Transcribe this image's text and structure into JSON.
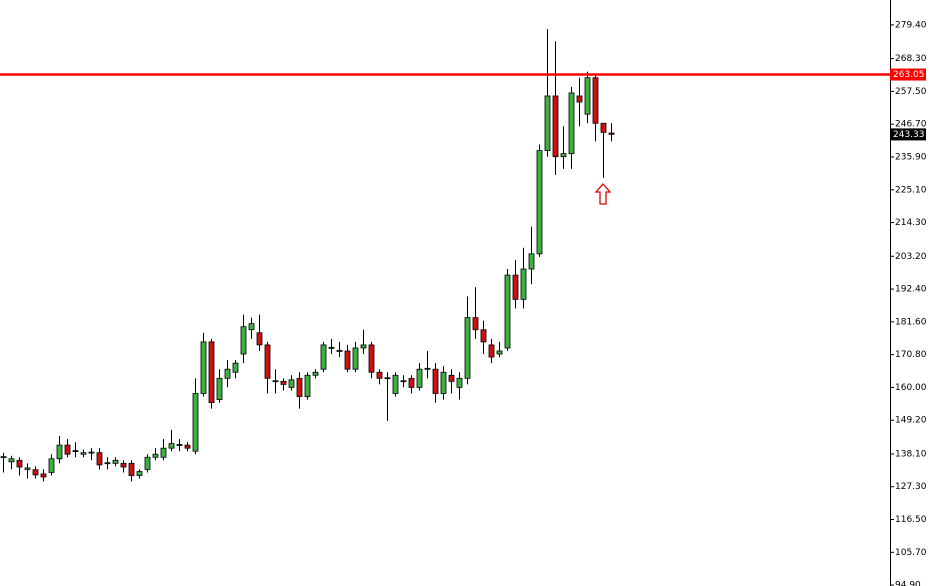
{
  "chart_data": {
    "type": "candlestick",
    "open": [
      137,
      135.5,
      136,
      133,
      132.9,
      131.5,
      132,
      136.5,
      141,
      139,
      138,
      138.5,
      138.5,
      135,
      135,
      135,
      135,
      131,
      133,
      137,
      137,
      140,
      141,
      141,
      139,
      158,
      175,
      156,
      163,
      165,
      171,
      179,
      178,
      174,
      162,
      162,
      160,
      163,
      157,
      164,
      166,
      173,
      172,
      172,
      166,
      173,
      174,
      165,
      163,
      158,
      162,
      163,
      160,
      166,
      166,
      158,
      164,
      160,
      163,
      183,
      179,
      174,
      171,
      173,
      197,
      189,
      199,
      204,
      238,
      256,
      236,
      237,
      256,
      250,
      262,
      247,
      243.8
    ],
    "high": [
      138.5,
      137.5,
      137,
      135,
      134,
      133,
      138,
      144,
      143,
      142,
      139.5,
      140,
      140,
      137,
      137,
      136,
      136,
      133,
      138,
      140,
      143,
      146,
      143,
      142,
      163,
      178,
      176,
      166,
      169,
      169,
      184,
      183,
      184,
      175,
      166,
      163,
      164,
      165,
      165,
      166,
      175,
      176,
      175,
      174,
      175,
      179,
      175,
      166,
      165,
      165,
      164,
      164,
      168,
      172,
      168,
      167,
      166,
      165,
      190,
      193,
      182,
      176,
      175,
      199,
      202,
      206,
      213,
      240,
      278,
      274,
      246,
      259,
      262,
      264,
      263,
      247,
      247
    ],
    "low": [
      132,
      133,
      131,
      130,
      130,
      129,
      131,
      135,
      137,
      137,
      137,
      136,
      133,
      133,
      134,
      132,
      129,
      130,
      132,
      136,
      136,
      139,
      139,
      139,
      138,
      157,
      153,
      155,
      160,
      163,
      168,
      176,
      172,
      158,
      158,
      159,
      159,
      153,
      156,
      163,
      165,
      171,
      170,
      165,
      165,
      171,
      163,
      161,
      149,
      157,
      160,
      158,
      159,
      163,
      155,
      156,
      158,
      156,
      161,
      176,
      171,
      168,
      170,
      172,
      186,
      186,
      194,
      203,
      236,
      230,
      232,
      232,
      246,
      247,
      241,
      229,
      241
    ],
    "close": [
      137.2,
      136.5,
      133.8,
      133.5,
      131.2,
      130.5,
      136.5,
      141,
      138,
      139.2,
      138.5,
      138.7,
      134.5,
      135.2,
      136,
      133.8,
      131,
      132.3,
      137,
      138,
      140,
      141.5,
      141.2,
      140,
      158,
      175,
      155,
      163,
      166,
      168,
      180,
      181,
      174,
      163,
      162.2,
      161,
      162.5,
      157,
      164,
      165,
      174,
      173.2,
      172.2,
      166,
      173,
      174,
      165,
      163,
      163.2,
      164,
      162.2,
      160,
      166,
      166.3,
      158,
      165,
      162,
      163,
      183,
      179,
      175,
      170,
      172,
      197,
      189,
      199,
      204,
      238,
      256,
      236,
      237,
      257,
      254,
      262,
      247,
      244,
      243.33
    ],
    "up_color": "#3cb043",
    "down_color": "#d01010",
    "ylim": [
      94.6,
      287.6
    ],
    "yticks": [
      {
        "value": 279.4,
        "label": "279.40"
      },
      {
        "value": 268.3,
        "label": "268.30"
      },
      {
        "value": 257.5,
        "label": "257.50"
      },
      {
        "value": 246.7,
        "label": "246.70"
      },
      {
        "value": 235.9,
        "label": "235.90"
      },
      {
        "value": 225.1,
        "label": "225.10"
      },
      {
        "value": 214.3,
        "label": "214.30"
      },
      {
        "value": 203.2,
        "label": "203.20"
      },
      {
        "value": 192.4,
        "label": "192.40"
      },
      {
        "value": 181.6,
        "label": "181.60"
      },
      {
        "value": 170.8,
        "label": "170.80"
      },
      {
        "value": 160,
        "label": "160.00"
      },
      {
        "value": 149.2,
        "label": "149.20"
      },
      {
        "value": 138.1,
        "label": "138.10"
      },
      {
        "value": 127.3,
        "label": "127.30"
      },
      {
        "value": 116.5,
        "label": "116.50"
      },
      {
        "value": 105.7,
        "label": "105.70"
      },
      {
        "value": 94.9,
        "label": "94.90"
      }
    ],
    "price_line": {
      "value": 263.05,
      "color": "#ff0000"
    },
    "last_price": 243.33
  }
}
